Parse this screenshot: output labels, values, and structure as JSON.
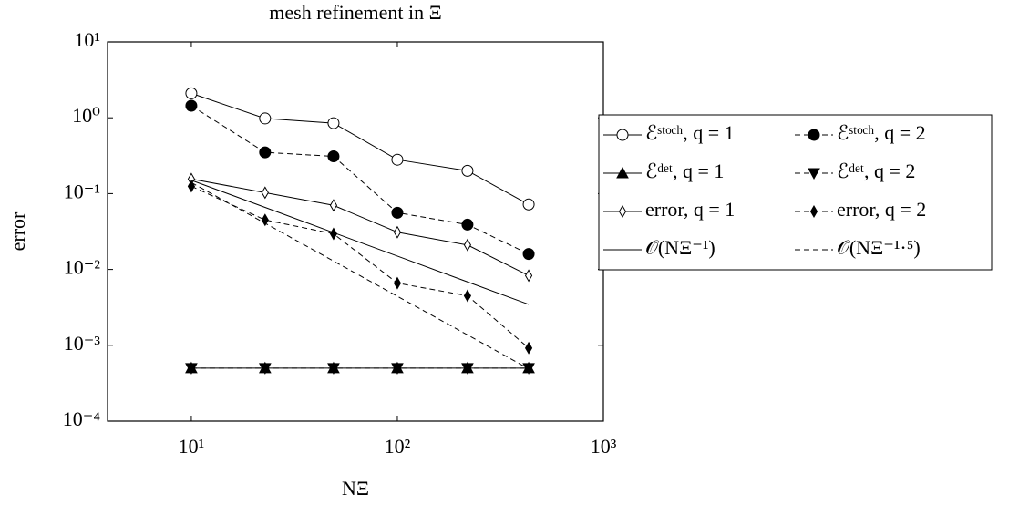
{
  "chart_data": {
    "type": "line",
    "title": "mesh refinement in Ξ",
    "xlabel": "NΞ",
    "ylabel": "error",
    "xscale": "log",
    "yscale": "log",
    "xlim": [
      3.92,
      1000
    ],
    "ylim": [
      0.0001,
      10
    ],
    "xticks": [
      {
        "value": 10,
        "label": "10¹"
      },
      {
        "value": 100,
        "label": "10²"
      },
      {
        "value": 1000,
        "label": "10³"
      }
    ],
    "yticks": [
      {
        "value": 0.0001,
        "label": "10⁻⁴"
      },
      {
        "value": 0.001,
        "label": "10⁻³"
      },
      {
        "value": 0.01,
        "label": "10⁻²"
      },
      {
        "value": 0.1,
        "label": "10⁻¹"
      },
      {
        "value": 1,
        "label": "10⁰"
      },
      {
        "value": 10,
        "label": "10¹"
      }
    ],
    "x": [
      10,
      22.8,
      49,
      100,
      219,
      434
    ],
    "series": [
      {
        "name": "ℰˢᵗᵒᶜʰ, q = 1",
        "color": "#000000",
        "marker": "circle-open",
        "dash": false,
        "values": [
          2.1,
          0.98,
          0.85,
          0.28,
          0.2,
          0.072
        ]
      },
      {
        "name": "ℰˢᵗᵒᶜʰ, q = 2",
        "color": "#000000",
        "marker": "circle-filled",
        "dash": true,
        "values": [
          1.44,
          0.35,
          0.31,
          0.056,
          0.039,
          0.016
        ]
      },
      {
        "name": "ℰᵈᵉᵗ, q = 1",
        "color": "#000000",
        "marker": "triangle-up",
        "dash": false,
        "values": [
          0.0005,
          0.0005,
          0.0005,
          0.0005,
          0.0005,
          0.0005
        ]
      },
      {
        "name": "ℰᵈᵉᵗ, q = 2",
        "color": "#000000",
        "marker": "triangle-down",
        "dash": true,
        "values": [
          0.0005,
          0.0005,
          0.0005,
          0.0005,
          0.0005,
          0.0005
        ]
      },
      {
        "name": "error, q = 1",
        "color": "#000000",
        "marker": "diamond-open",
        "dash": false,
        "values": [
          0.156,
          0.103,
          0.07,
          0.031,
          0.021,
          0.0083
        ]
      },
      {
        "name": "error, q = 2",
        "color": "#000000",
        "marker": "diamond-filled",
        "dash": true,
        "values": [
          0.125,
          0.045,
          0.0295,
          0.0066,
          0.0045,
          0.00092
        ]
      },
      {
        "name": "𝒪(NΞ⁻¹)",
        "color": "#000000",
        "marker": "none",
        "dash": false,
        "values": [
          0.15,
          0.0658,
          0.0306,
          0.015,
          0.00685,
          0.00346
        ]
      },
      {
        "name": "𝒪(NΞ⁻¹·⁵)",
        "color": "#000000",
        "marker": "none",
        "dash": true,
        "values": [
          0.14,
          0.0407,
          0.0129,
          0.00443,
          0.00137,
          0.00049
        ]
      }
    ],
    "legend": "outside-right"
  }
}
